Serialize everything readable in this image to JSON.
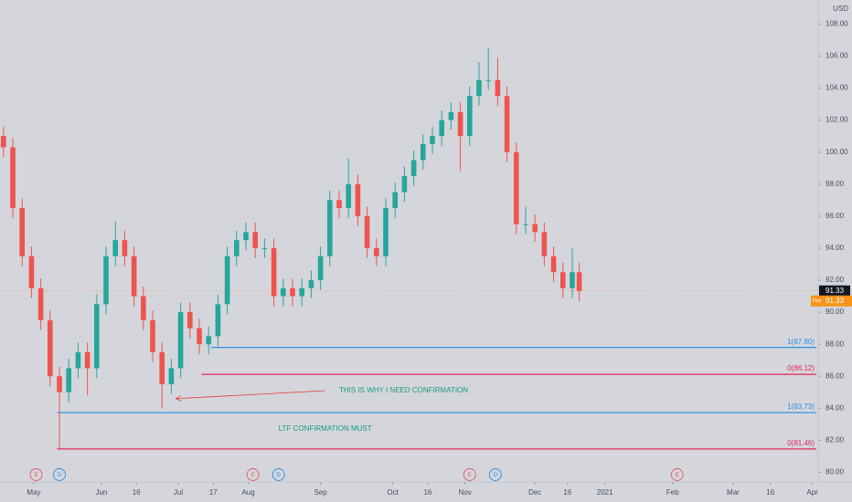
{
  "chart_data": {
    "type": "candlestick",
    "y_unit": "USD",
    "up_color": "#26a69a",
    "down_color": "#ef5350",
    "x": [
      -13,
      -9,
      -5,
      -1,
      3,
      7,
      11,
      15,
      19,
      23,
      27,
      31,
      35,
      39,
      43,
      47,
      51,
      55,
      59,
      63,
      67,
      71,
      75,
      79,
      83,
      87,
      91,
      95,
      99,
      103,
      107,
      111,
      115,
      119,
      123,
      127,
      131,
      135,
      139,
      143,
      147,
      151,
      155,
      159,
      163,
      167,
      171,
      175,
      179,
      183,
      187,
      191,
      195,
      199,
      203,
      207,
      211,
      215,
      219,
      223,
      227,
      231,
      234
    ],
    "open": [
      101,
      100.3,
      96.5,
      93.5,
      91.5,
      89.5,
      86,
      85,
      86.5,
      87.5,
      86.5,
      90.5,
      93.5,
      94.5,
      93.5,
      91,
      89.5,
      87.5,
      85.5,
      86.5,
      90,
      89,
      88,
      88.5,
      90.5,
      93.5,
      94.5,
      95,
      94,
      94,
      91,
      91.5,
      91,
      91.5,
      92,
      93.5,
      97,
      96.5,
      98,
      96,
      94,
      93.5,
      96.5,
      97.5,
      98.5,
      99.5,
      100.5,
      101,
      102,
      102.5,
      101,
      103.5,
      104.5,
      104.5,
      103.5,
      100,
      95.5,
      95.5,
      95,
      93.5,
      92.5,
      91.5,
      92.5
    ],
    "high": [
      101.6,
      100.9,
      97.1,
      94.1,
      92.1,
      90.1,
      86.6,
      87.1,
      88.1,
      88.1,
      91.1,
      94.1,
      95.7,
      95.1,
      94.1,
      91.6,
      90.1,
      88.1,
      87.1,
      90.6,
      90.6,
      89.6,
      89.1,
      91.1,
      94.1,
      95.1,
      95.6,
      95.6,
      94.6,
      94.6,
      92.1,
      92.1,
      92.1,
      92.6,
      94.1,
      97.6,
      97.6,
      99.6,
      98.6,
      96.6,
      94.6,
      97.1,
      98.1,
      99.1,
      100.1,
      101.1,
      101.6,
      102.6,
      103.1,
      103.1,
      104.1,
      105.6,
      106.5,
      105.9,
      104.1,
      100.6,
      96.6,
      96.1,
      95.6,
      94.1,
      93.1,
      94.0,
      93.1
    ],
    "low": [
      99.7,
      95.9,
      92.9,
      90.9,
      88.9,
      85.4,
      81.5,
      84.4,
      85.9,
      84.8,
      85.9,
      89.9,
      92.9,
      92.9,
      90.4,
      88.9,
      86.9,
      84.0,
      84.9,
      85.9,
      88.4,
      87.4,
      87.4,
      87.9,
      89.9,
      92.9,
      93.9,
      93.4,
      93.4,
      90.4,
      90.4,
      90.4,
      90.4,
      90.9,
      91.4,
      92.9,
      95.9,
      95.9,
      95.4,
      93.4,
      92.9,
      92.9,
      95.9,
      96.9,
      97.9,
      98.9,
      99.9,
      100.4,
      101.4,
      98.8,
      100.4,
      102.9,
      103.9,
      102.9,
      99.4,
      94.9,
      94.9,
      94.4,
      92.9,
      91.9,
      90.9,
      90.9,
      90.7
    ],
    "close": [
      100.3,
      96.5,
      93.5,
      91.5,
      89.5,
      86,
      85,
      86.5,
      87.5,
      86.5,
      90.5,
      93.5,
      94.5,
      93.5,
      91,
      89.5,
      87.5,
      85.5,
      86.5,
      90,
      89,
      88,
      88.5,
      90.5,
      93.5,
      94.5,
      95,
      94,
      94,
      91,
      91.5,
      91,
      91.5,
      92,
      93.5,
      97,
      96.5,
      98,
      96,
      94,
      93.5,
      96.5,
      97.5,
      98.5,
      99.5,
      100.5,
      101,
      102,
      102.5,
      101,
      103.5,
      104.5,
      104.5,
      103.5,
      100,
      95.5,
      95.5,
      95,
      93.5,
      92.5,
      91.5,
      92.5,
      91.33
    ],
    "xlim": [
      -14.5,
      336.5
    ],
    "xticks": [
      {
        "value": 0,
        "label": "May"
      },
      {
        "value": 29,
        "label": "Jun"
      },
      {
        "value": 44,
        "label": "16"
      },
      {
        "value": 62,
        "label": "Jul"
      },
      {
        "value": 77,
        "label": "17"
      },
      {
        "value": 92,
        "label": "Aug"
      },
      {
        "value": 123,
        "label": "Sep"
      },
      {
        "value": 154,
        "label": "Oct"
      },
      {
        "value": 169,
        "label": "16"
      },
      {
        "value": 185,
        "label": "Nov"
      },
      {
        "value": 215,
        "label": "Dec"
      },
      {
        "value": 229,
        "label": "16"
      },
      {
        "value": 245,
        "label": "2021"
      },
      {
        "value": 274,
        "label": "Feb"
      },
      {
        "value": 300,
        "label": "Mar"
      },
      {
        "value": 316,
        "label": "16"
      },
      {
        "value": 334,
        "label": "Apr"
      }
    ],
    "ylim": [
      79.4,
      109.5
    ],
    "yticks": [
      {
        "value": 80,
        "label": "80.00"
      },
      {
        "value": 82,
        "label": "82.00"
      },
      {
        "value": 84,
        "label": "84.00"
      },
      {
        "value": 86,
        "label": "86.00"
      },
      {
        "value": 88,
        "label": "88.00"
      },
      {
        "value": 90,
        "label": "90.00"
      },
      {
        "value": 92,
        "label": "92.00"
      },
      {
        "value": 94,
        "label": "94.00"
      },
      {
        "value": 96,
        "label": "96.00"
      },
      {
        "value": 98,
        "label": "98.00"
      },
      {
        "value": 100,
        "label": "100.00"
      },
      {
        "value": 102,
        "label": "102.00"
      },
      {
        "value": 104,
        "label": "104.00"
      },
      {
        "value": 106,
        "label": "106.00"
      },
      {
        "value": 108,
        "label": "108.00"
      }
    ],
    "levels": [
      {
        "value": 87.8,
        "label": "1(87.80)",
        "color": "#2c8fe0",
        "start": 76
      },
      {
        "value": 86.12,
        "label": "0(86.12)",
        "color": "#e0285a",
        "start": 72
      },
      {
        "value": 83.73,
        "label": "1(83.73)",
        "color": "#2c8fe0",
        "start": 10
      },
      {
        "value": 81.46,
        "label": "0(81.46)",
        "color": "#e0285a",
        "start": 10
      }
    ],
    "annotations": [
      {
        "text": "THIS IS WHY I NEED CONFIRMATION",
        "x": 131,
        "y": 85.1,
        "arrow_from": [
          125,
          85.1
        ],
        "arrow_to": [
          61,
          84.6
        ]
      },
      {
        "text": "LTF CONFIRMATION MUST",
        "x": 105,
        "y": 82.7
      }
    ],
    "events": [
      {
        "x": 1,
        "label": "E",
        "color": "#e05a6a"
      },
      {
        "x": 11,
        "label": "D",
        "color": "#2c8fe0"
      },
      {
        "x": 94,
        "label": "E",
        "color": "#e05a6a"
      },
      {
        "x": 105,
        "label": "D",
        "color": "#2c8fe0"
      },
      {
        "x": 187,
        "label": "E",
        "color": "#e05a6a"
      },
      {
        "x": 198,
        "label": "D",
        "color": "#2c8fe0"
      },
      {
        "x": 276,
        "label": "E",
        "color": "#e05a6a"
      }
    ],
    "last_price": 91.33,
    "premarket": {
      "label": "Pre",
      "value": 91.33
    }
  }
}
